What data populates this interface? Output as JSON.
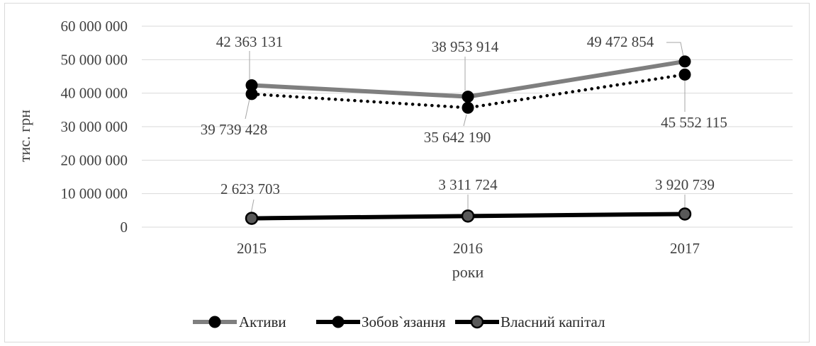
{
  "chart_data": {
    "type": "line",
    "title": "",
    "xlabel": "роки",
    "ylabel": "тис. грн",
    "categories": [
      "2015",
      "2016",
      "2017"
    ],
    "ylim": [
      0,
      60000000
    ],
    "yticks": [
      0,
      10000000,
      20000000,
      30000000,
      40000000,
      50000000,
      60000000
    ],
    "ytick_labels": [
      "0",
      "10 000 000",
      "20 000 000",
      "30 000 000",
      "40 000 000",
      "50 000 000",
      "60 000 000"
    ],
    "grid": true,
    "legend_position": "bottom",
    "series": [
      {
        "name": "Активи",
        "values": [
          42363131,
          38953914,
          49472854
        ],
        "labels": [
          "42 363 131",
          "38 953 914",
          "49 472 854"
        ],
        "color": "#7f7f7f",
        "style": "solid-thick",
        "marker": "circle-black"
      },
      {
        "name": "Зобов`язання",
        "values": [
          39739428,
          35642190,
          45552115
        ],
        "labels": [
          "39 739 428",
          "35 642 190",
          "45 552 115"
        ],
        "color": "#000000",
        "style": "dotted",
        "marker": "circle-black"
      },
      {
        "name": "Власний капітал",
        "values": [
          2623703,
          3311724,
          3920739
        ],
        "labels": [
          "2 623 703",
          "3 311 724",
          "3 920 739"
        ],
        "color": "#000000",
        "style": "solid-thick",
        "marker": "circle-gray"
      }
    ]
  }
}
